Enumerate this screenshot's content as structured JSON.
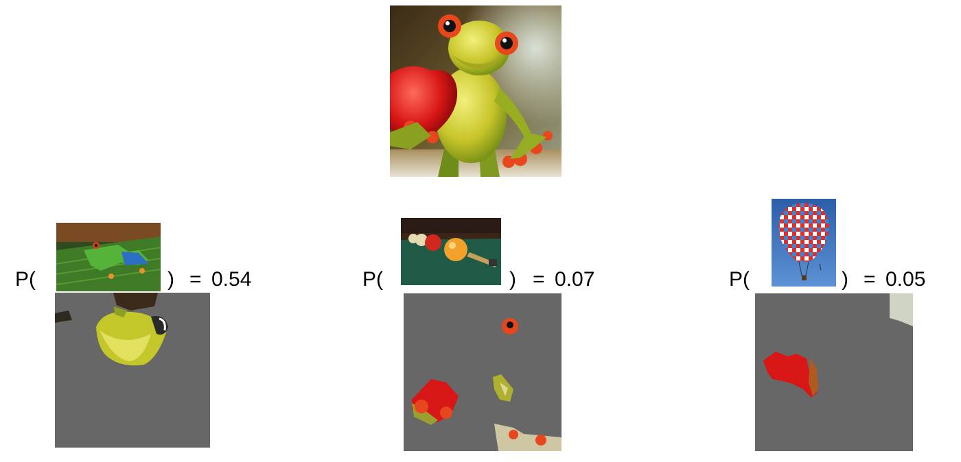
{
  "input_image": {
    "icon": "frog-figurine-holding-heart-image"
  },
  "explanations": [
    {
      "open": "P(",
      "close": ")",
      "equals": "=",
      "value": "0.54",
      "thumb_icon": "tree-frog-on-leaf-image",
      "mask_icon": "frog-head-superpixel-mask"
    },
    {
      "open": "P(",
      "close": ")",
      "equals": "=",
      "value": "0.07",
      "thumb_icon": "billiard-balls-image",
      "mask_icon": "red-ball-like-superpixel-mask"
    },
    {
      "open": "P(",
      "close": ")",
      "equals": "=",
      "value": "0.05",
      "thumb_icon": "hot-air-balloon-image",
      "mask_icon": "red-heart-superpixel-mask"
    }
  ],
  "colors": {
    "mask_gray": "#676767",
    "frog_green": "#c4c72a",
    "heart_red": "#d81616",
    "eye_orange": "#e8461c"
  }
}
